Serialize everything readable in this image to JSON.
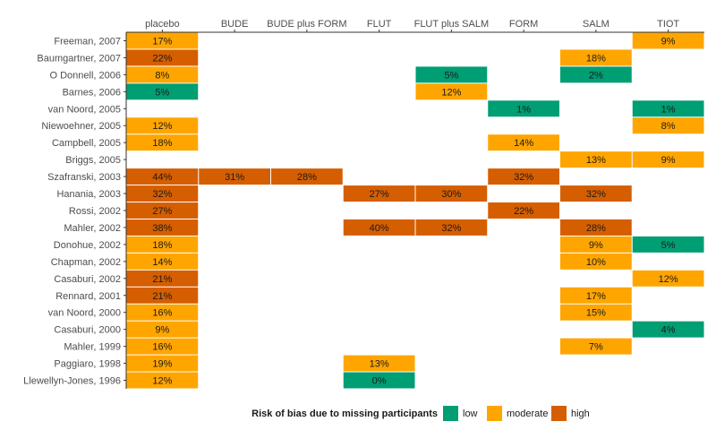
{
  "chart_data": {
    "type": "heatmap",
    "title": "",
    "xlabel": "",
    "ylabel": "",
    "x_categories": [
      "placebo",
      "BUDE",
      "BUDE plus FORM",
      "FLUT",
      "FLUT plus SALM",
      "FORM",
      "SALM",
      "TIOT"
    ],
    "y_categories": [
      "Freeman, 2007",
      "Baumgartner, 2007",
      "O Donnell, 2006",
      "Barnes, 2006",
      "van Noord, 2005",
      "Niewoehner, 2005",
      "Campbell, 2005",
      "Briggs, 2005",
      "Szafranski, 2003",
      "Hanania, 2003",
      "Rossi, 2002",
      "Mahler, 2002",
      "Donohue, 2002",
      "Chapman, 2002",
      "Casaburi, 2002",
      "Rennard, 2001",
      "van Noord, 2000",
      "Casaburi, 2000",
      "Mahler, 1999",
      "Paggiaro, 1998",
      "Llewellyn-Jones, 1996"
    ],
    "legend": {
      "title": "Risk of bias due to missing participants",
      "position": "bottom",
      "entries": [
        {
          "label": "low",
          "color": "#009E73"
        },
        {
          "label": "moderate",
          "color": "#FFA500"
        },
        {
          "label": "high",
          "color": "#D55E00"
        }
      ]
    },
    "cells": [
      {
        "study": "Freeman, 2007",
        "treatment": "placebo",
        "value": 17,
        "label": "17%",
        "risk": "moderate"
      },
      {
        "study": "Freeman, 2007",
        "treatment": "TIOT",
        "value": 9,
        "label": "9%",
        "risk": "moderate"
      },
      {
        "study": "Baumgartner, 2007",
        "treatment": "placebo",
        "value": 22,
        "label": "22%",
        "risk": "high"
      },
      {
        "study": "Baumgartner, 2007",
        "treatment": "SALM",
        "value": 18,
        "label": "18%",
        "risk": "moderate"
      },
      {
        "study": "O Donnell, 2006",
        "treatment": "placebo",
        "value": 8,
        "label": "8%",
        "risk": "moderate"
      },
      {
        "study": "O Donnell, 2006",
        "treatment": "FLUT plus SALM",
        "value": 5,
        "label": "5%",
        "risk": "low"
      },
      {
        "study": "O Donnell, 2006",
        "treatment": "SALM",
        "value": 2,
        "label": "2%",
        "risk": "low"
      },
      {
        "study": "Barnes, 2006",
        "treatment": "placebo",
        "value": 5,
        "label": "5%",
        "risk": "low"
      },
      {
        "study": "Barnes, 2006",
        "treatment": "FLUT plus SALM",
        "value": 12,
        "label": "12%",
        "risk": "moderate"
      },
      {
        "study": "van Noord, 2005",
        "treatment": "FORM",
        "value": 1,
        "label": "1%",
        "risk": "low"
      },
      {
        "study": "van Noord, 2005",
        "treatment": "TIOT",
        "value": 1,
        "label": "1%",
        "risk": "low"
      },
      {
        "study": "Niewoehner, 2005",
        "treatment": "placebo",
        "value": 12,
        "label": "12%",
        "risk": "moderate"
      },
      {
        "study": "Niewoehner, 2005",
        "treatment": "TIOT",
        "value": 8,
        "label": "8%",
        "risk": "moderate"
      },
      {
        "study": "Campbell, 2005",
        "treatment": "placebo",
        "value": 18,
        "label": "18%",
        "risk": "moderate"
      },
      {
        "study": "Campbell, 2005",
        "treatment": "FORM",
        "value": 14,
        "label": "14%",
        "risk": "moderate"
      },
      {
        "study": "Briggs, 2005",
        "treatment": "SALM",
        "value": 13,
        "label": "13%",
        "risk": "moderate"
      },
      {
        "study": "Briggs, 2005",
        "treatment": "TIOT",
        "value": 9,
        "label": "9%",
        "risk": "moderate"
      },
      {
        "study": "Szafranski, 2003",
        "treatment": "placebo",
        "value": 44,
        "label": "44%",
        "risk": "high"
      },
      {
        "study": "Szafranski, 2003",
        "treatment": "BUDE",
        "value": 31,
        "label": "31%",
        "risk": "high"
      },
      {
        "study": "Szafranski, 2003",
        "treatment": "BUDE plus FORM",
        "value": 28,
        "label": "28%",
        "risk": "high"
      },
      {
        "study": "Szafranski, 2003",
        "treatment": "FORM",
        "value": 32,
        "label": "32%",
        "risk": "high"
      },
      {
        "study": "Hanania, 2003",
        "treatment": "placebo",
        "value": 32,
        "label": "32%",
        "risk": "high"
      },
      {
        "study": "Hanania, 2003",
        "treatment": "FLUT",
        "value": 27,
        "label": "27%",
        "risk": "high"
      },
      {
        "study": "Hanania, 2003",
        "treatment": "FLUT plus SALM",
        "value": 30,
        "label": "30%",
        "risk": "high"
      },
      {
        "study": "Hanania, 2003",
        "treatment": "SALM",
        "value": 32,
        "label": "32%",
        "risk": "high"
      },
      {
        "study": "Rossi, 2002",
        "treatment": "placebo",
        "value": 27,
        "label": "27%",
        "risk": "high"
      },
      {
        "study": "Rossi, 2002",
        "treatment": "FORM",
        "value": 22,
        "label": "22%",
        "risk": "high"
      },
      {
        "study": "Mahler, 2002",
        "treatment": "placebo",
        "value": 38,
        "label": "38%",
        "risk": "high"
      },
      {
        "study": "Mahler, 2002",
        "treatment": "FLUT",
        "value": 40,
        "label": "40%",
        "risk": "high"
      },
      {
        "study": "Mahler, 2002",
        "treatment": "FLUT plus SALM",
        "value": 32,
        "label": "32%",
        "risk": "high"
      },
      {
        "study": "Mahler, 2002",
        "treatment": "SALM",
        "value": 28,
        "label": "28%",
        "risk": "high"
      },
      {
        "study": "Donohue, 2002",
        "treatment": "placebo",
        "value": 18,
        "label": "18%",
        "risk": "moderate"
      },
      {
        "study": "Donohue, 2002",
        "treatment": "SALM",
        "value": 9,
        "label": "9%",
        "risk": "moderate"
      },
      {
        "study": "Donohue, 2002",
        "treatment": "TIOT",
        "value": 5,
        "label": "5%",
        "risk": "low"
      },
      {
        "study": "Chapman, 2002",
        "treatment": "placebo",
        "value": 14,
        "label": "14%",
        "risk": "moderate"
      },
      {
        "study": "Chapman, 2002",
        "treatment": "SALM",
        "value": 10,
        "label": "10%",
        "risk": "moderate"
      },
      {
        "study": "Casaburi, 2002",
        "treatment": "placebo",
        "value": 21,
        "label": "21%",
        "risk": "high"
      },
      {
        "study": "Casaburi, 2002",
        "treatment": "TIOT",
        "value": 12,
        "label": "12%",
        "risk": "moderate"
      },
      {
        "study": "Rennard, 2001",
        "treatment": "placebo",
        "value": 21,
        "label": "21%",
        "risk": "high"
      },
      {
        "study": "Rennard, 2001",
        "treatment": "SALM",
        "value": 17,
        "label": "17%",
        "risk": "moderate"
      },
      {
        "study": "van Noord, 2000",
        "treatment": "placebo",
        "value": 16,
        "label": "16%",
        "risk": "moderate"
      },
      {
        "study": "van Noord, 2000",
        "treatment": "SALM",
        "value": 15,
        "label": "15%",
        "risk": "moderate"
      },
      {
        "study": "Casaburi, 2000",
        "treatment": "placebo",
        "value": 9,
        "label": "9%",
        "risk": "moderate"
      },
      {
        "study": "Casaburi, 2000",
        "treatment": "TIOT",
        "value": 4,
        "label": "4%",
        "risk": "low"
      },
      {
        "study": "Mahler, 1999",
        "treatment": "placebo",
        "value": 16,
        "label": "16%",
        "risk": "moderate"
      },
      {
        "study": "Mahler, 1999",
        "treatment": "SALM",
        "value": 7,
        "label": "7%",
        "risk": "moderate"
      },
      {
        "study": "Paggiaro, 1998",
        "treatment": "placebo",
        "value": 19,
        "label": "19%",
        "risk": "moderate"
      },
      {
        "study": "Paggiaro, 1998",
        "treatment": "FLUT",
        "value": 13,
        "label": "13%",
        "risk": "moderate"
      },
      {
        "study": "Llewellyn-Jones, 1996",
        "treatment": "placebo",
        "value": 12,
        "label": "12%",
        "risk": "moderate"
      },
      {
        "study": "Llewellyn-Jones, 1996",
        "treatment": "FLUT",
        "value": 0,
        "label": "0%",
        "risk": "low"
      }
    ]
  }
}
